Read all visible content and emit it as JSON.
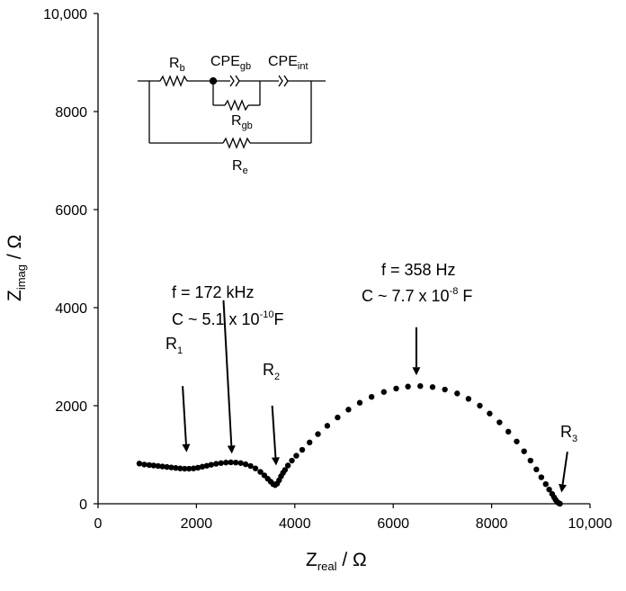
{
  "chart_data": {
    "type": "scatter",
    "title": "",
    "x_axis": {
      "label_main": "Z",
      "label_sub": "real",
      "label_unit": " / Ω",
      "range": [
        0,
        10000
      ],
      "ticks": [
        0,
        2000,
        4000,
        6000,
        8000,
        10000
      ],
      "tick_labels": [
        "0",
        "2000",
        "4000",
        "6000",
        "8000",
        "10,000"
      ]
    },
    "y_axis": {
      "label_main": "Z",
      "label_sub": "imag",
      "label_unit": " / Ω",
      "range": [
        0,
        10000
      ],
      "ticks": [
        0,
        2000,
        4000,
        6000,
        8000,
        10000
      ],
      "tick_labels": [
        "0",
        "2000",
        "4000",
        "6000",
        "8000",
        "10,000"
      ]
    },
    "grid": false,
    "legend": "none",
    "marker_color": "#000000",
    "series": [
      {
        "points": [
          [
            840,
            820
          ],
          [
            940,
            800
          ],
          [
            1040,
            790
          ],
          [
            1130,
            780
          ],
          [
            1220,
            770
          ],
          [
            1310,
            760
          ],
          [
            1400,
            750
          ],
          [
            1490,
            740
          ],
          [
            1580,
            730
          ],
          [
            1670,
            720
          ],
          [
            1760,
            715
          ],
          [
            1850,
            715
          ],
          [
            1940,
            720
          ],
          [
            2030,
            735
          ],
          [
            2120,
            755
          ],
          [
            2210,
            775
          ],
          [
            2300,
            795
          ],
          [
            2400,
            815
          ],
          [
            2500,
            830
          ],
          [
            2600,
            840
          ],
          [
            2700,
            845
          ],
          [
            2800,
            840
          ],
          [
            2900,
            830
          ],
          [
            3000,
            805
          ],
          [
            3100,
            770
          ],
          [
            3200,
            720
          ],
          [
            3300,
            650
          ],
          [
            3380,
            580
          ],
          [
            3450,
            510
          ],
          [
            3510,
            450
          ],
          [
            3560,
            400
          ],
          [
            3600,
            380
          ],
          [
            3640,
            410
          ],
          [
            3680,
            480
          ],
          [
            3720,
            560
          ],
          [
            3760,
            630
          ],
          [
            3800,
            690
          ],
          [
            3860,
            780
          ],
          [
            3940,
            880
          ],
          [
            4030,
            980
          ],
          [
            4150,
            1100
          ],
          [
            4300,
            1250
          ],
          [
            4470,
            1420
          ],
          [
            4660,
            1590
          ],
          [
            4870,
            1760
          ],
          [
            5090,
            1920
          ],
          [
            5320,
            2060
          ],
          [
            5560,
            2180
          ],
          [
            5810,
            2280
          ],
          [
            6060,
            2350
          ],
          [
            6300,
            2390
          ],
          [
            6550,
            2400
          ],
          [
            6800,
            2380
          ],
          [
            7050,
            2330
          ],
          [
            7300,
            2250
          ],
          [
            7530,
            2140
          ],
          [
            7760,
            2000
          ],
          [
            7960,
            1840
          ],
          [
            8160,
            1660
          ],
          [
            8340,
            1470
          ],
          [
            8510,
            1270
          ],
          [
            8660,
            1070
          ],
          [
            8790,
            880
          ],
          [
            8910,
            700
          ],
          [
            9010,
            540
          ],
          [
            9100,
            400
          ],
          [
            9170,
            290
          ],
          [
            9230,
            200
          ],
          [
            9270,
            130
          ],
          [
            9300,
            80
          ],
          [
            9330,
            40
          ],
          [
            9360,
            15
          ],
          [
            9390,
            0
          ]
        ]
      }
    ],
    "annotations": [
      {
        "lines": [
          {
            "text": "R",
            "sub": "1",
            "sup": "",
            "after": ""
          }
        ]
      },
      {
        "lines": [
          {
            "text": "f = 172 kHz",
            "sub": "",
            "sup": "",
            "after": ""
          },
          {
            "text": "C ~ 5.1 x 10",
            "sub": "",
            "sup": "-10",
            "after": "F"
          }
        ]
      },
      {
        "lines": [
          {
            "text": "R",
            "sub": "2",
            "sup": "",
            "after": ""
          }
        ]
      },
      {
        "lines": [
          {
            "text": "f = 358 Hz",
            "sub": "",
            "sup": "",
            "after": ""
          },
          {
            "text": "C ~ 7.7 x 10",
            "sub": "",
            "sup": "-8",
            "after": " F"
          }
        ]
      },
      {
        "lines": [
          {
            "text": "R",
            "sub": "3",
            "sup": "",
            "after": ""
          }
        ]
      }
    ],
    "arrows": [
      {
        "from": [
          1720,
          2400
        ],
        "to": [
          1800,
          1050
        ]
      },
      {
        "from": [
          2550,
          4150
        ],
        "to": [
          2720,
          1020
        ]
      },
      {
        "from": [
          3540,
          2000
        ],
        "to": [
          3620,
          780
        ]
      },
      {
        "from": [
          6470,
          3600
        ],
        "to": [
          6470,
          2620
        ]
      },
      {
        "from": [
          9540,
          1060
        ],
        "to": [
          9420,
          230
        ]
      }
    ],
    "equivalent_circuit": {
      "labels": [
        {
          "main": "R",
          "sub": "b"
        },
        {
          "main": "CPE",
          "sub": "gb"
        },
        {
          "main": "CPE",
          "sub": "int"
        },
        {
          "main": "R",
          "sub": "gb"
        },
        {
          "main": "R",
          "sub": "e"
        }
      ]
    }
  }
}
